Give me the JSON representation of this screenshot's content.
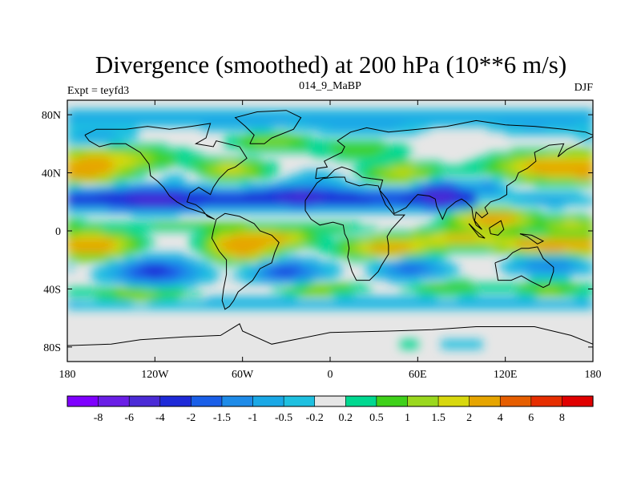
{
  "chart_data": {
    "type": "heatmap",
    "title": "Divergence (smoothed) at 200 hPa (10**6 m/s)",
    "subtitle_left": "Expt = teyfd3",
    "subtitle_center": "014_9_MaBP",
    "subtitle_right": "DJF",
    "x_ticks": [
      {
        "value": -180,
        "label": "180"
      },
      {
        "value": -120,
        "label": "120W"
      },
      {
        "value": -60,
        "label": "60W"
      },
      {
        "value": 0,
        "label": "0"
      },
      {
        "value": 60,
        "label": "60E"
      },
      {
        "value": 120,
        "label": "120E"
      },
      {
        "value": 180,
        "label": "180"
      }
    ],
    "y_ticks": [
      {
        "value": 80,
        "label": "80N"
      },
      {
        "value": 40,
        "label": "40N"
      },
      {
        "value": 0,
        "label": "0"
      },
      {
        "value": -40,
        "label": "40S"
      },
      {
        "value": -80,
        "label": "80S"
      }
    ],
    "xlim": [
      -180,
      180
    ],
    "ylim": [
      -90,
      90
    ],
    "colorbar": {
      "levels": [
        "-8",
        "-6",
        "-4",
        "-2",
        "-1.5",
        "-1",
        "-0.5",
        "-0.2",
        "0.2",
        "0.5",
        "1",
        "1.5",
        "2",
        "4",
        "6",
        "8"
      ],
      "colors": [
        "#7f00ff",
        "#6a1ee6",
        "#4b2bd6",
        "#1e2ad8",
        "#1a5fe8",
        "#1e8be8",
        "#1aa8e6",
        "#1fc0e0",
        "#e6e6e6",
        "#00d890",
        "#3fd11a",
        "#9ad81e",
        "#d8d80e",
        "#e6a500",
        "#e65e00",
        "#e62e00",
        "#e00000"
      ]
    },
    "features": [
      {
        "type": "band",
        "lat": 88,
        "lonStart": -180,
        "lonEnd": 180,
        "halfWidth": 4,
        "value": 0
      },
      {
        "type": "band",
        "lat": 78,
        "lonStart": -180,
        "lonEnd": 180,
        "halfWidth": 5,
        "value": -0.6
      },
      {
        "type": "blob",
        "lon": -160,
        "lat": 64,
        "rlon": 28,
        "rlat": 8,
        "value": -0.7
      },
      {
        "type": "blob",
        "lon": -60,
        "lat": 74,
        "rlon": 30,
        "rlat": 6,
        "value": -0.5
      },
      {
        "type": "blob",
        "lon": 20,
        "lat": 70,
        "rlon": 40,
        "rlat": 6,
        "value": -0.6
      },
      {
        "type": "blob",
        "lon": 140,
        "lat": 72,
        "rlon": 30,
        "rlat": 6,
        "value": -0.5
      },
      {
        "type": "blob",
        "lon": -150,
        "lat": 50,
        "rlon": 40,
        "rlat": 8,
        "value": 1.8
      },
      {
        "type": "blob",
        "lon": -170,
        "lat": 40,
        "rlon": 25,
        "rlat": 6,
        "value": 2.5
      },
      {
        "type": "blob",
        "lon": -70,
        "lat": 42,
        "rlon": 25,
        "rlat": 6,
        "value": 1.8
      },
      {
        "type": "blob",
        "lon": -40,
        "lat": 62,
        "rlon": 25,
        "rlat": 6,
        "value": 1.2
      },
      {
        "type": "blob",
        "lon": 20,
        "lat": 56,
        "rlon": 30,
        "rlat": 6,
        "value": 0.8
      },
      {
        "type": "blob",
        "lon": 50,
        "lat": 40,
        "rlon": 25,
        "rlat": 6,
        "value": 1.6
      },
      {
        "type": "blob",
        "lon": 150,
        "lat": 44,
        "rlon": 35,
        "rlat": 8,
        "value": 2.6
      },
      {
        "type": "blob",
        "lon": -100,
        "lat": 40,
        "rlon": 20,
        "rlat": 5,
        "value": -0.6
      },
      {
        "type": "blob",
        "lon": -10,
        "lat": 36,
        "rlon": 20,
        "rlat": 5,
        "value": -0.6
      },
      {
        "type": "band",
        "lat": 22,
        "lonStart": -180,
        "lonEnd": 100,
        "halfWidth": 6,
        "value": -2.3
      },
      {
        "type": "blob",
        "lon": -120,
        "lat": 22,
        "rlon": 30,
        "rlat": 7,
        "value": -2.8
      },
      {
        "type": "blob",
        "lon": -20,
        "lat": 24,
        "rlon": 28,
        "rlat": 6,
        "value": -2.6
      },
      {
        "type": "blob",
        "lon": 75,
        "lat": 25,
        "rlon": 14,
        "rlat": 8,
        "value": -3.6
      },
      {
        "type": "blob",
        "lon": 108,
        "lat": 30,
        "rlon": 12,
        "rlat": 6,
        "value": -1.2
      },
      {
        "type": "blob",
        "lon": 150,
        "lat": 22,
        "rlon": 25,
        "rlat": 5,
        "value": -0.8
      },
      {
        "type": "blob",
        "lon": -100,
        "lat": 4,
        "rlon": 30,
        "rlat": 3,
        "value": 0.8
      },
      {
        "type": "blob",
        "lon": 0,
        "lat": 2,
        "rlon": 30,
        "rlat": 3,
        "value": 0.6
      },
      {
        "type": "blob",
        "lon": 110,
        "lat": 8,
        "rlon": 25,
        "rlat": 6,
        "value": 3.0
      },
      {
        "type": "blob",
        "lon": 165,
        "lat": 4,
        "rlon": 20,
        "rlat": 5,
        "value": 1.6
      },
      {
        "type": "blob",
        "lon": -160,
        "lat": -10,
        "rlon": 25,
        "rlat": 9,
        "value": 2.5
      },
      {
        "type": "blob",
        "lon": -60,
        "lat": -10,
        "rlon": 22,
        "rlat": 10,
        "value": 3.2
      },
      {
        "type": "blob",
        "lon": -30,
        "lat": -5,
        "rlon": 18,
        "rlat": 5,
        "value": 1.8
      },
      {
        "type": "blob",
        "lon": 40,
        "lat": -12,
        "rlon": 30,
        "rlat": 6,
        "value": 2.5
      },
      {
        "type": "blob",
        "lon": 90,
        "lat": -5,
        "rlon": 30,
        "rlat": 5,
        "value": 2.2
      },
      {
        "type": "blob",
        "lon": 150,
        "lat": -10,
        "rlon": 30,
        "rlat": 5,
        "value": 3.5
      },
      {
        "type": "blob",
        "lon": -120,
        "lat": -28,
        "rlon": 28,
        "rlat": 9,
        "value": -2.4
      },
      {
        "type": "blob",
        "lon": -30,
        "lat": -28,
        "rlon": 24,
        "rlat": 8,
        "value": -2.1
      },
      {
        "type": "blob",
        "lon": 55,
        "lat": -26,
        "rlon": 22,
        "rlat": 7,
        "value": -1.8
      },
      {
        "type": "blob",
        "lon": 150,
        "lat": -24,
        "rlon": 24,
        "rlat": 6,
        "value": -1.6
      },
      {
        "type": "blob",
        "lon": -130,
        "lat": -44,
        "rlon": 35,
        "rlat": 5,
        "value": 1.4
      },
      {
        "type": "blob",
        "lon": -10,
        "lat": -40,
        "rlon": 28,
        "rlat": 5,
        "value": 1.2
      },
      {
        "type": "blob",
        "lon": 80,
        "lat": -40,
        "rlon": 25,
        "rlat": 5,
        "value": 1.0
      },
      {
        "type": "blob",
        "lon": 150,
        "lat": -40,
        "rlon": 25,
        "rlat": 5,
        "value": 1.1
      },
      {
        "type": "band",
        "lat": -50,
        "lonStart": -180,
        "lonEnd": 180,
        "halfWidth": 5,
        "value": -0.6
      },
      {
        "type": "blob",
        "lon": 90,
        "lat": -78,
        "rlon": 14,
        "rlat": 3,
        "value": -0.6
      },
      {
        "type": "blob",
        "lon": 55,
        "lat": -78,
        "rlon": 8,
        "rlat": 2,
        "value": 0.6
      }
    ]
  }
}
